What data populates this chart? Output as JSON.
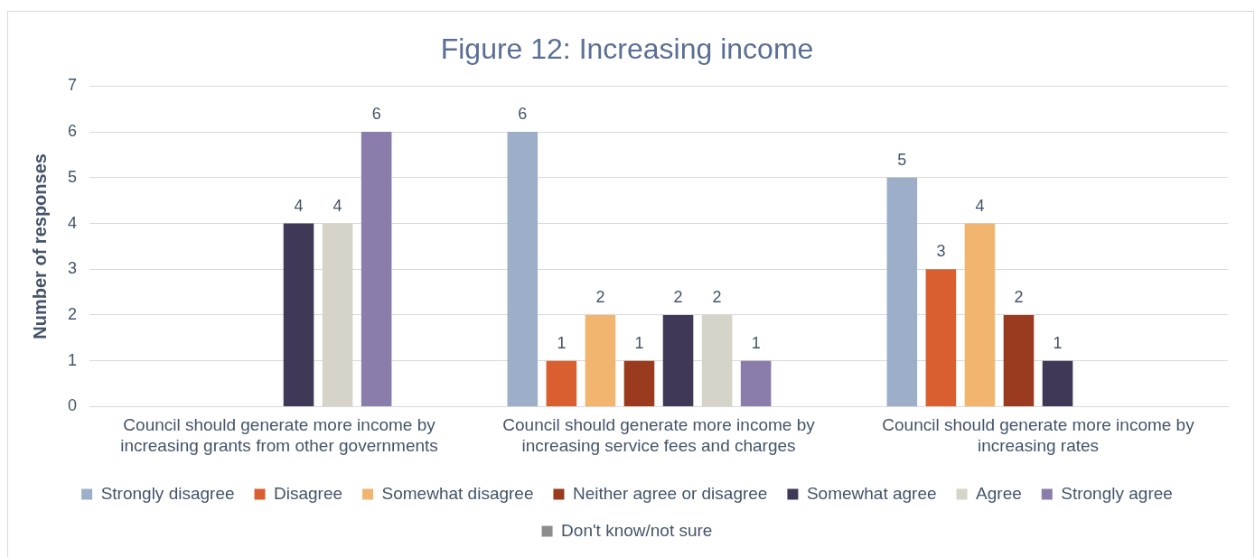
{
  "chart_data": {
    "type": "bar",
    "title": "Figure 12: Increasing income",
    "ylabel": "Number of responses",
    "categories": [
      "Council should generate more income by increasing grants from other governments",
      "Council should generate more income by increasing service fees and charges",
      "Council should generate more income by increasing rates"
    ],
    "series": [
      {
        "name": "Strongly disagree",
        "color": "#9dafc8",
        "values": [
          0,
          6,
          5
        ],
        "value_labels": [
          null,
          "6",
          "5"
        ]
      },
      {
        "name": "Disagree",
        "color": "#d95f30",
        "values": [
          0,
          1,
          3
        ],
        "value_labels": [
          null,
          "1",
          "3"
        ]
      },
      {
        "name": "Somewhat disagree",
        "color": "#f2b56f",
        "values": [
          0,
          2,
          4
        ],
        "value_labels": [
          null,
          "2",
          "4"
        ]
      },
      {
        "name": "Neither agree or disagree",
        "color": "#9a3b1f",
        "values": [
          0,
          1,
          2
        ],
        "value_labels": [
          null,
          "1",
          "2"
        ]
      },
      {
        "name": "Somewhat agree",
        "color": "#3f3857",
        "values": [
          4,
          2,
          1
        ],
        "value_labels": [
          "4",
          "2",
          "1"
        ]
      },
      {
        "name": "Agree",
        "color": "#d6d3c8",
        "values": [
          4,
          2,
          0
        ],
        "value_labels": [
          "4",
          "2",
          null
        ]
      },
      {
        "name": "Strongly agree",
        "color": "#8a7dab",
        "values": [
          6,
          1,
          0
        ],
        "value_labels": [
          "6",
          "1",
          null
        ]
      },
      {
        "name": "Don't know/not sure",
        "color": "#8c8c8c",
        "values": [
          0,
          0,
          0
        ],
        "value_labels": [
          null,
          null,
          null
        ]
      }
    ],
    "ylim": [
      0,
      7
    ],
    "yticks": [
      0,
      1,
      2,
      3,
      4,
      5,
      6,
      7
    ],
    "grid": "y",
    "legend": "bottom"
  }
}
